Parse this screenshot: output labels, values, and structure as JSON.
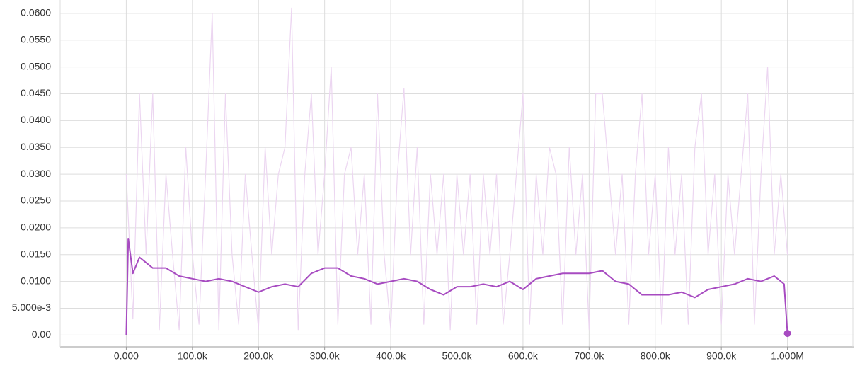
{
  "chart_data": {
    "type": "line",
    "xlim": [
      -100000,
      1100000
    ],
    "xticks": [
      {
        "value": 0,
        "label": "0.000"
      },
      {
        "value": 100000,
        "label": "100.0k"
      },
      {
        "value": 200000,
        "label": "200.0k"
      },
      {
        "value": 300000,
        "label": "300.0k"
      },
      {
        "value": 400000,
        "label": "400.0k"
      },
      {
        "value": 500000,
        "label": "500.0k"
      },
      {
        "value": 600000,
        "label": "600.0k"
      },
      {
        "value": 700000,
        "label": "700.0k"
      },
      {
        "value": 800000,
        "label": "800.0k"
      },
      {
        "value": 900000,
        "label": "900.0k"
      },
      {
        "value": 1000000,
        "label": "1.000M"
      }
    ],
    "ylim": [
      -0.0022,
      0.0625
    ],
    "yticks": [
      {
        "value": 0,
        "label": "0.00"
      },
      {
        "value": 0.005,
        "label": "5.000e-3"
      },
      {
        "value": 0.01,
        "label": "0.0100"
      },
      {
        "value": 0.015,
        "label": "0.0150"
      },
      {
        "value": 0.02,
        "label": "0.0200"
      },
      {
        "value": 0.025,
        "label": "0.0250"
      },
      {
        "value": 0.03,
        "label": "0.0300"
      },
      {
        "value": 0.035,
        "label": "0.0350"
      },
      {
        "value": 0.04,
        "label": "0.0400"
      },
      {
        "value": 0.045,
        "label": "0.0450"
      },
      {
        "value": 0.05,
        "label": "0.0500"
      },
      {
        "value": 0.055,
        "label": "0.0550"
      },
      {
        "value": 0.06,
        "label": "0.0600"
      }
    ],
    "grid": true,
    "series": [
      {
        "color": "#ecd6f1",
        "x": [
          0,
          10000,
          20000,
          30000,
          40000,
          50000,
          60000,
          70000,
          80000,
          90000,
          100000,
          110000,
          120000,
          130000,
          140000,
          150000,
          160000,
          170000,
          180000,
          190000,
          200000,
          210000,
          220000,
          230000,
          240000,
          250000,
          260000,
          270000,
          280000,
          290000,
          300000,
          310000,
          320000,
          330000,
          340000,
          350000,
          360000,
          370000,
          380000,
          390000,
          400000,
          410000,
          420000,
          430000,
          440000,
          450000,
          460000,
          470000,
          480000,
          490000,
          500000,
          510000,
          520000,
          530000,
          540000,
          550000,
          560000,
          570000,
          580000,
          590000,
          600000,
          610000,
          620000,
          630000,
          640000,
          650000,
          660000,
          670000,
          680000,
          690000,
          700000,
          710000,
          720000,
          730000,
          740000,
          750000,
          760000,
          770000,
          780000,
          790000,
          800000,
          810000,
          820000,
          830000,
          840000,
          850000,
          860000,
          870000,
          880000,
          890000,
          900000,
          910000,
          920000,
          930000,
          940000,
          950000,
          960000,
          970000,
          980000,
          990000,
          1000000
        ],
        "values": [
          0.03,
          0.003,
          0.045,
          0.015,
          0.045,
          0.001,
          0.03,
          0.015,
          0.001,
          0.035,
          0.015,
          0.002,
          0.03,
          0.06,
          0.001,
          0.045,
          0.015,
          0.002,
          0.03,
          0.015,
          0.001,
          0.035,
          0.015,
          0.03,
          0.035,
          0.061,
          0.001,
          0.03,
          0.045,
          0.015,
          0.03,
          0.05,
          0.002,
          0.03,
          0.035,
          0.015,
          0.03,
          0.002,
          0.045,
          0.015,
          0.001,
          0.03,
          0.046,
          0.015,
          0.035,
          0.002,
          0.03,
          0.015,
          0.03,
          0.001,
          0.03,
          0.015,
          0.03,
          0.002,
          0.03,
          0.015,
          0.03,
          0.002,
          0.015,
          0.03,
          0.045,
          0.002,
          0.03,
          0.015,
          0.035,
          0.03,
          0.002,
          0.035,
          0.015,
          0.03,
          0.001,
          0.045,
          0.045,
          0.03,
          0.015,
          0.03,
          0.002,
          0.03,
          0.045,
          0.015,
          0.03,
          0.002,
          0.035,
          0.015,
          0.03,
          0.002,
          0.035,
          0.045,
          0.015,
          0.03,
          0.002,
          0.03,
          0.015,
          0.03,
          0.045,
          0.002,
          0.03,
          0.05,
          0.015,
          0.03,
          0.015
        ]
      },
      {
        "color": "#a74bc1",
        "x": [
          0,
          3000,
          10000,
          20000,
          40000,
          60000,
          80000,
          100000,
          120000,
          140000,
          160000,
          180000,
          200000,
          220000,
          240000,
          260000,
          280000,
          300000,
          320000,
          340000,
          360000,
          380000,
          400000,
          420000,
          440000,
          460000,
          480000,
          500000,
          520000,
          540000,
          560000,
          580000,
          600000,
          620000,
          640000,
          660000,
          680000,
          700000,
          720000,
          740000,
          760000,
          780000,
          800000,
          820000,
          840000,
          860000,
          880000,
          900000,
          920000,
          940000,
          960000,
          980000,
          995000,
          1000000
        ],
        "values": [
          0,
          0.018,
          0.0115,
          0.0145,
          0.0125,
          0.0125,
          0.011,
          0.0105,
          0.01,
          0.0105,
          0.01,
          0.009,
          0.008,
          0.009,
          0.0095,
          0.009,
          0.0115,
          0.0125,
          0.0125,
          0.011,
          0.0105,
          0.0095,
          0.01,
          0.0105,
          0.01,
          0.0085,
          0.0075,
          0.009,
          0.009,
          0.0095,
          0.009,
          0.01,
          0.0085,
          0.0105,
          0.011,
          0.0115,
          0.0115,
          0.0115,
          0.012,
          0.01,
          0.0095,
          0.0075,
          0.0075,
          0.0075,
          0.008,
          0.007,
          0.0085,
          0.009,
          0.0095,
          0.0105,
          0.01,
          0.011,
          0.0095,
          0.0003
        ]
      }
    ]
  }
}
